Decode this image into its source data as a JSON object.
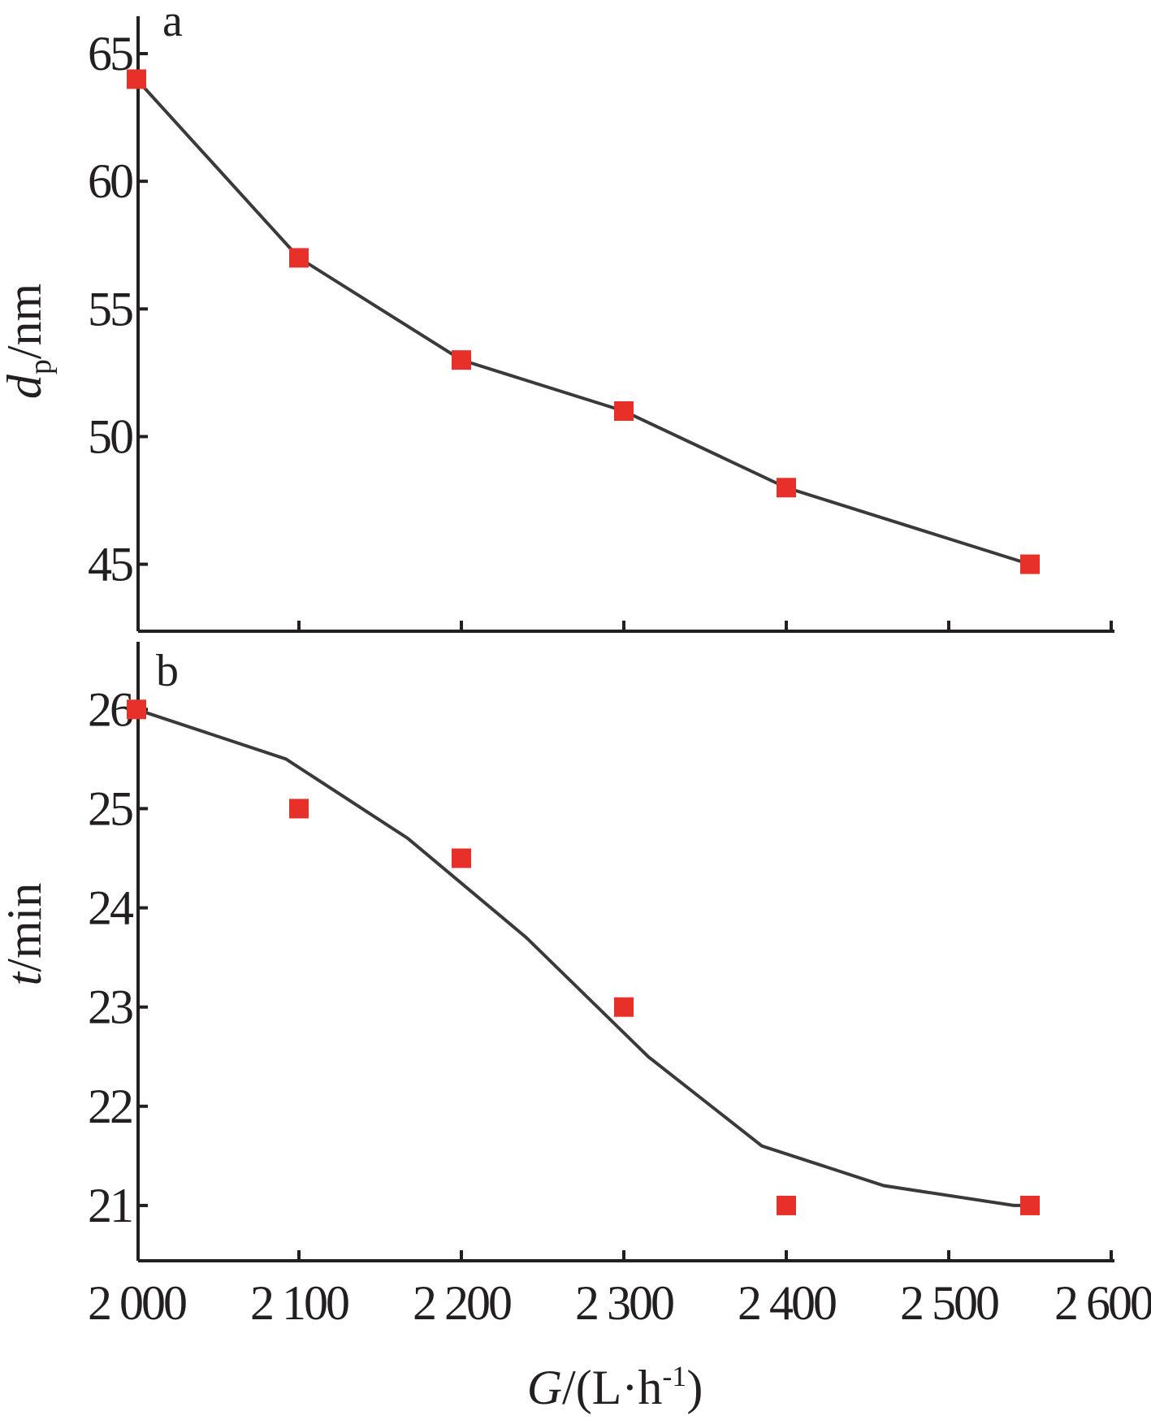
{
  "chart_data": [
    {
      "panel_label": "a",
      "type": "line",
      "ylabel": {
        "var": "d",
        "sub": "p",
        "unit": "/nm"
      },
      "ylim": [
        42.6,
        66.4
      ],
      "yticks": [
        45,
        50,
        55,
        60,
        65
      ],
      "ytick_labels": [
        "45",
        "50",
        "55",
        "60",
        "65"
      ],
      "xlim": [
        2000,
        2600
      ],
      "xticks": [
        2000,
        2100,
        2200,
        2300,
        2400,
        2500,
        2600
      ],
      "series": [
        {
          "points": [
            [
              2000,
              64
            ],
            [
              2100,
              57
            ],
            [
              2200,
              53
            ],
            [
              2300,
              51
            ],
            [
              2400,
              48
            ],
            [
              2550,
              45
            ]
          ],
          "line": [
            [
              2000,
              64
            ],
            [
              2100,
              57
            ],
            [
              2200,
              53
            ],
            [
              2300,
              51
            ],
            [
              2400,
              48
            ],
            [
              2550,
              45
            ]
          ]
        }
      ],
      "colors": {
        "marker": "#e8302b",
        "line": "#3a3a3a"
      }
    },
    {
      "panel_label": "b",
      "type": "line",
      "ylabel": {
        "var": "t",
        "sub": "",
        "unit": "/min"
      },
      "ylim": [
        20.5,
        26.6
      ],
      "yticks": [
        21,
        22,
        23,
        24,
        25,
        26
      ],
      "ytick_labels": [
        "21",
        "22",
        "23",
        "24",
        "25",
        "26"
      ],
      "xlim": [
        2000,
        2600
      ],
      "xticks": [
        2000,
        2100,
        2200,
        2300,
        2400,
        2500,
        2600
      ],
      "xtick_labels": [
        "2 000",
        "2 100",
        "2 200",
        "2 300",
        "2 400",
        "2 500",
        "2 600"
      ],
      "xlabel": {
        "var": "G",
        "unit": "/(L·h",
        "sup": "-1",
        "close": ")"
      },
      "series": [
        {
          "points": [
            [
              2000,
              26
            ],
            [
              2100,
              25
            ],
            [
              2200,
              24.5
            ],
            [
              2300,
              23
            ],
            [
              2400,
              21
            ],
            [
              2550,
              21
            ]
          ],
          "line": [
            [
              2000,
              26
            ],
            [
              2092,
              25.5
            ],
            [
              2167,
              24.7
            ],
            [
              2240,
              23.7
            ],
            [
              2315,
              22.5
            ],
            [
              2385,
              21.6
            ],
            [
              2460,
              21.2
            ],
            [
              2540,
              21
            ],
            [
              2550,
              21
            ]
          ]
        }
      ],
      "colors": {
        "marker": "#e8302b",
        "line": "#231f20"
      }
    }
  ]
}
